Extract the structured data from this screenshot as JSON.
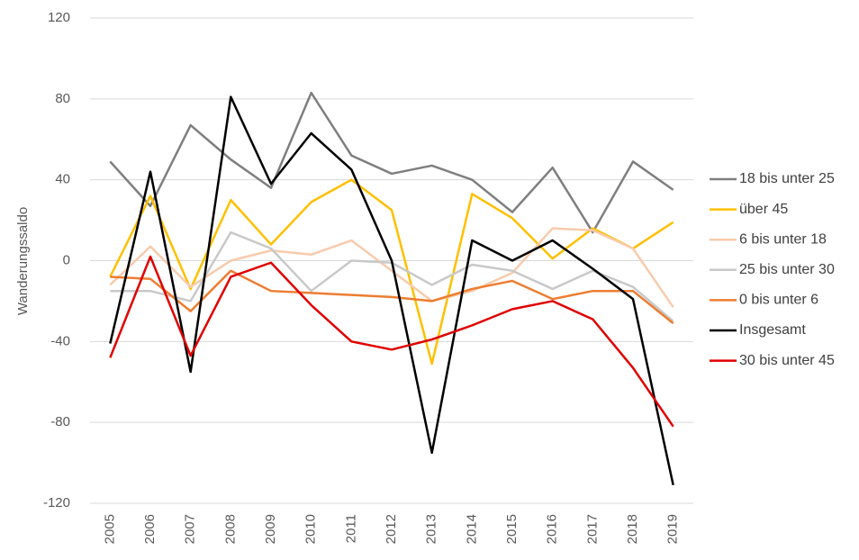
{
  "chart_data": {
    "type": "line",
    "y_label": "Wanderungssaldo",
    "categories": [
      "2005",
      "2006",
      "2007",
      "2008",
      "2009",
      "2010",
      "2011",
      "2012",
      "2013",
      "2014",
      "2015",
      "2016",
      "2017",
      "2018",
      "2019"
    ],
    "series": [
      {
        "name": "18 bis unter 25",
        "color": "#7f7f7f",
        "values": [
          49,
          27,
          67,
          50,
          36,
          83,
          52,
          43,
          47,
          40,
          24,
          46,
          14,
          49,
          35
        ]
      },
      {
        "name": "über 45",
        "color": "#ffc000",
        "values": [
          -8,
          32,
          -14,
          30,
          8,
          29,
          40,
          25,
          -51,
          33,
          21,
          1,
          16,
          6,
          19
        ]
      },
      {
        "name": "6 bis unter 18",
        "color": "#f8cbad",
        "values": [
          -12,
          7,
          -13,
          0,
          5,
          3,
          10,
          -5,
          -20,
          -15,
          -6,
          16,
          15,
          6,
          -23
        ]
      },
      {
        "name": "25 bis unter 30",
        "color": "#c9c9c9",
        "values": [
          -15,
          -15,
          -20,
          14,
          6,
          -15,
          0,
          -1,
          -12,
          -2,
          -5,
          -14,
          -5,
          -13,
          -30
        ]
      },
      {
        "name": "0 bis unter 6",
        "color": "#ed7d31",
        "values": [
          -8,
          -9,
          -25,
          -5,
          -15,
          -16,
          -17,
          -18,
          -20,
          -14,
          -10,
          -19,
          -15,
          -15,
          -31
        ]
      },
      {
        "name": "Insgesamt",
        "color": "#000000",
        "values": [
          -41,
          44,
          -55,
          81,
          38,
          63,
          45,
          0,
          -95,
          10,
          0,
          10,
          -4,
          -19,
          -111
        ]
      },
      {
        "name": "30 bis unter 45",
        "color": "#e00000",
        "values": [
          -48,
          2,
          -47,
          -8,
          -1,
          -22,
          -40,
          -44,
          -39,
          -32,
          -24,
          -20,
          -29,
          -53,
          -82
        ]
      }
    ],
    "ylim": [
      -120,
      120
    ],
    "yticks": [
      -120,
      -80,
      -40,
      0,
      40,
      80,
      120
    ],
    "grid": true,
    "legend": "right"
  }
}
